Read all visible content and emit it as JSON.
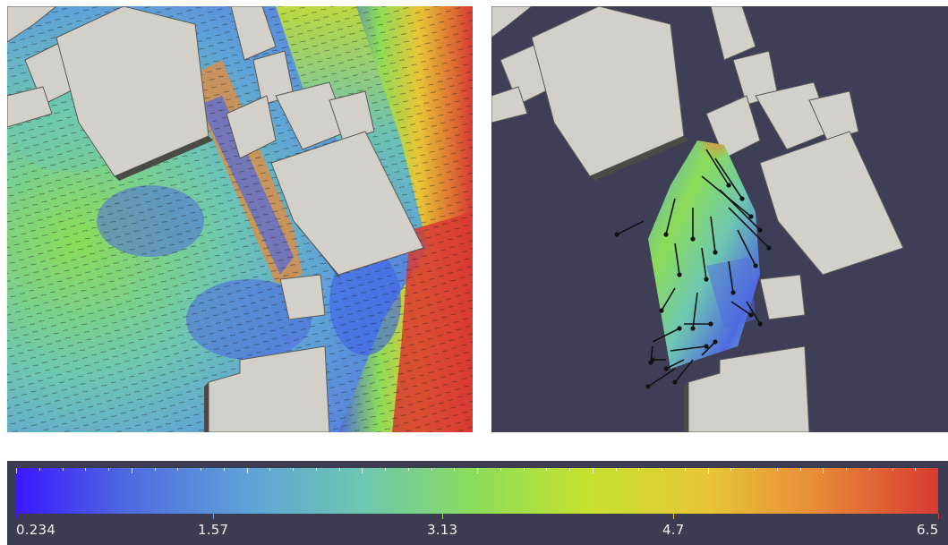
{
  "colors": {
    "background_dark": "#3e3e56",
    "building_top": "#d2d0c8",
    "building_side": "#5a5a55",
    "arrow": "#141414",
    "colormap": [
      "#3a18ff",
      "#4f6ae0",
      "#5fa2d8",
      "#6ec8b0",
      "#8cdc58",
      "#c6e230",
      "#e8c636",
      "#e88a38",
      "#d83a32"
    ]
  },
  "colorbar": {
    "min": 0.234,
    "max": 6.5,
    "ticks": [
      {
        "value": 0.234,
        "label": "0.234"
      },
      {
        "value": 1.57,
        "label": "1.57"
      },
      {
        "value": 3.13,
        "label": "3.13"
      },
      {
        "value": 4.7,
        "label": "4.7"
      },
      {
        "value": 6.5,
        "label": "6.5"
      }
    ]
  },
  "panels": {
    "left": {
      "content": "dense-velocity-field"
    },
    "right": {
      "content": "sparse-velocity-field"
    }
  }
}
